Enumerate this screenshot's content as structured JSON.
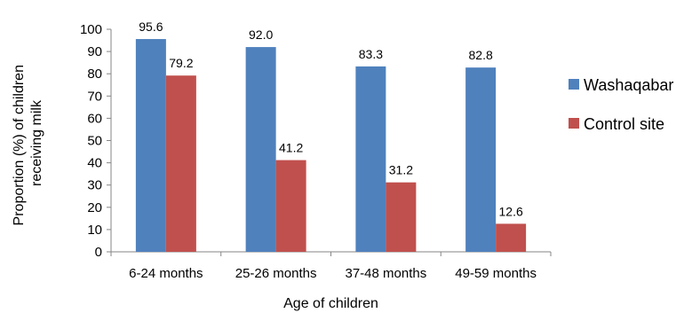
{
  "chart_data": {
    "type": "bar",
    "xlabel": "Age of children",
    "ylabel_lines": [
      "Proportion (%) of children",
      "receiving  milk"
    ],
    "ylim": [
      0,
      100
    ],
    "yticks": [
      0,
      10,
      20,
      30,
      40,
      50,
      60,
      70,
      80,
      90,
      100
    ],
    "categories": [
      "6-24 months",
      "25-26 months",
      "37-48 months",
      "49-59 months"
    ],
    "series": [
      {
        "name": "Washaqabar",
        "color": "#4f81bd",
        "values": [
          95.6,
          92.0,
          83.3,
          82.8
        ],
        "labels": [
          "95.6",
          "92.0",
          "83.3",
          "82.8"
        ]
      },
      {
        "name": "Control site",
        "color": "#c0504d",
        "values": [
          79.2,
          41.2,
          31.2,
          12.6
        ],
        "labels": [
          "79.2",
          "41.2",
          "31.2",
          "12.6"
        ]
      }
    ],
    "grid": false,
    "legend_position": "right"
  }
}
